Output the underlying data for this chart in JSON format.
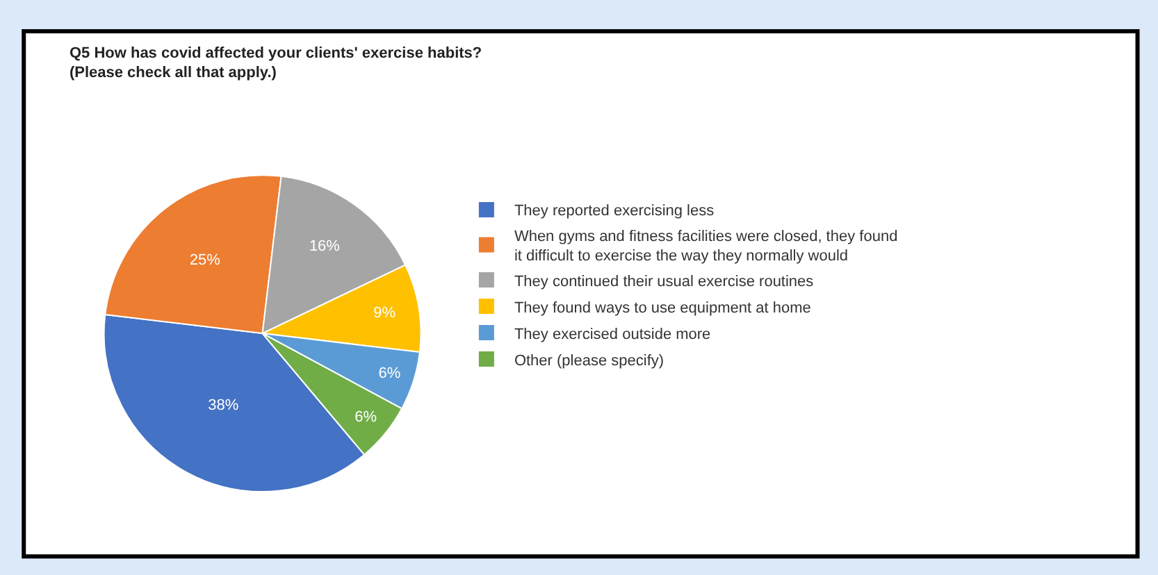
{
  "chart_data": {
    "type": "pie",
    "title": "Q5 How has covid affected your clients' exercise habits?",
    "subtitle": "(Please check all that apply.)",
    "categories": [
      "They reported exercising less",
      "When gyms and fitness facilities were closed, they found it difficult to exercise the way they normally would",
      "They continued their usual exercise routines",
      "They found ways to use equipment at home",
      "They exercised outside more",
      "Other (please specify)"
    ],
    "values": [
      38,
      25,
      16,
      9,
      6,
      6
    ],
    "colors": [
      "#4472c4",
      "#ed7d31",
      "#a5a5a5",
      "#ffc000",
      "#5b9bd5",
      "#70ad47"
    ],
    "value_labels": [
      "38%",
      "25%",
      "16%",
      "9%",
      "6%",
      "6%"
    ],
    "legend": "right"
  }
}
